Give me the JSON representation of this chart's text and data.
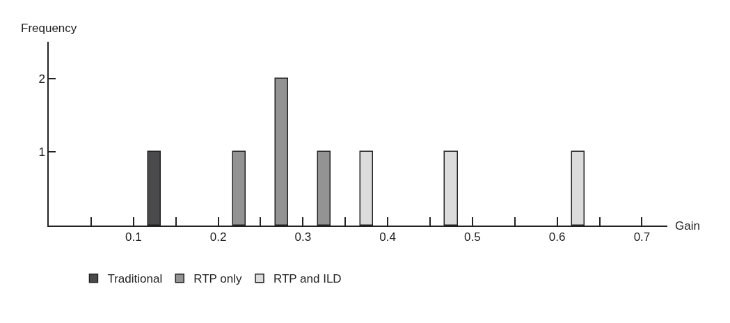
{
  "chart_data": {
    "type": "bar",
    "xlabel": "Gain",
    "ylabel": "Frequency",
    "series": [
      {
        "name": "Traditional",
        "color": "#4a4a4c",
        "x": [
          0.125
        ],
        "values": [
          1
        ]
      },
      {
        "name": "RTP only",
        "color": "#939393",
        "x": [
          0.225,
          0.275,
          0.325
        ],
        "values": [
          1,
          2,
          1
        ]
      },
      {
        "name": "RTP and ILD",
        "color": "#dcdcdc",
        "x": [
          0.375,
          0.475,
          0.625
        ],
        "values": [
          1,
          1,
          1
        ]
      }
    ],
    "xlim": [
      0,
      0.73
    ],
    "ylim": [
      0,
      2.5
    ],
    "xticks": [
      {
        "value": 0.05,
        "label": null
      },
      0.1,
      {
        "value": 0.15,
        "label": null
      },
      0.2,
      {
        "value": 0.25,
        "label": null
      },
      0.3,
      {
        "value": 0.35,
        "label": null
      },
      0.4,
      {
        "value": 0.45,
        "label": null
      },
      0.5,
      {
        "value": 0.55,
        "label": null
      },
      0.6,
      {
        "value": 0.65,
        "label": null
      },
      0.7
    ],
    "yticks": [
      1,
      2
    ],
    "legend": "bottom"
  }
}
